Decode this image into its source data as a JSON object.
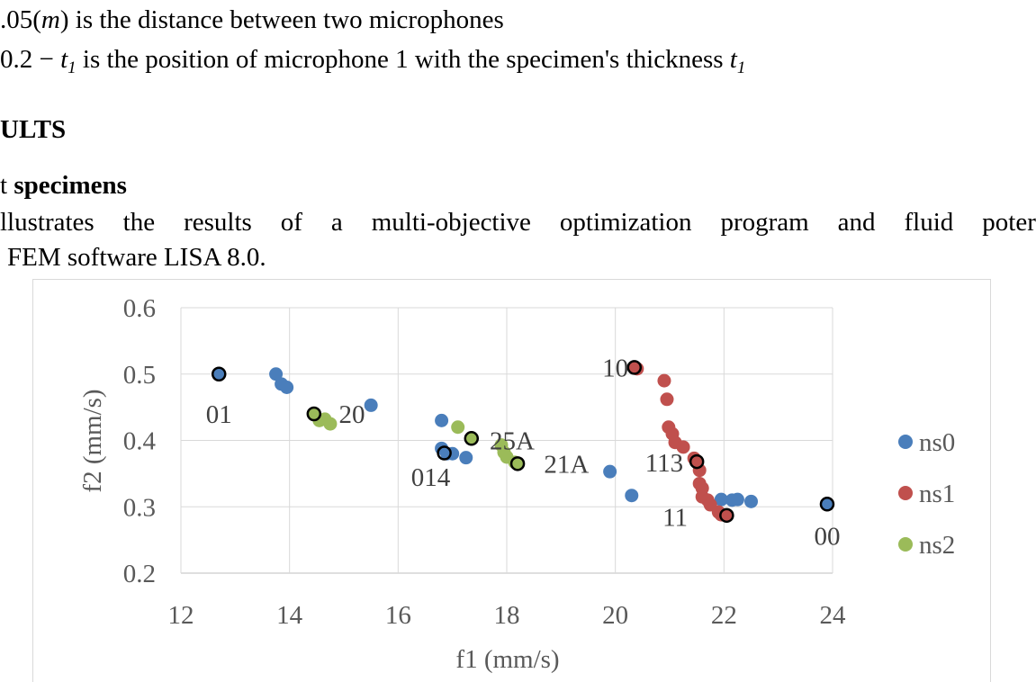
{
  "document": {
    "line1_prefix": ".05(",
    "line1_var": "m",
    "line1_suffix": ") is the distance between two microphones",
    "line2_prefix": "0.2 − ",
    "line2_var": "t",
    "line2_sub": "1",
    "line2_middle": " is the position of microphone 1 with the specimen's thickness ",
    "line2_var2": "t",
    "line2_sub2": "1",
    "heading_results": "ULTS",
    "subheading_prefix": "t ",
    "subheading_bold": "specimens",
    "paragraph_words": [
      "llustrates",
      "the",
      "results",
      "of",
      "a",
      "multi-objective",
      "optimization",
      "program",
      "and",
      "fluid",
      "poter"
    ],
    "paragraph_line2": "FEM software LISA 8.0."
  },
  "chart_data": {
    "type": "scatter",
    "xlabel": "f1 (mm/s)",
    "ylabel": "f2 (mm/s)",
    "xlim": [
      12,
      24
    ],
    "ylim": [
      0.2,
      0.6
    ],
    "xticks": [
      "12",
      "14",
      "16",
      "18",
      "20",
      "22",
      "24"
    ],
    "yticks": [
      "0.2",
      "0.3",
      "0.4",
      "0.5",
      "0.6"
    ],
    "grid": true,
    "legend_position": "right",
    "series": [
      {
        "name": "ns0",
        "color": "#4a7ebb",
        "points": [
          [
            12.7,
            0.5
          ],
          [
            13.75,
            0.5
          ],
          [
            13.85,
            0.485
          ],
          [
            13.95,
            0.48
          ],
          [
            15.5,
            0.453
          ],
          [
            14.45,
            0.44
          ],
          [
            16.8,
            0.43
          ],
          [
            16.8,
            0.388
          ],
          [
            16.9,
            0.38
          ],
          [
            17.0,
            0.38
          ],
          [
            17.25,
            0.374
          ],
          [
            19.9,
            0.353
          ],
          [
            20.3,
            0.317
          ],
          [
            21.95,
            0.311
          ],
          [
            22.15,
            0.31
          ],
          [
            22.25,
            0.311
          ],
          [
            22.5,
            0.308
          ],
          [
            23.9,
            0.304
          ]
        ]
      },
      {
        "name": "ns1",
        "color": "#c0504d",
        "points": [
          [
            20.35,
            0.51
          ],
          [
            20.4,
            0.508
          ],
          [
            20.9,
            0.49
          ],
          [
            20.95,
            0.462
          ],
          [
            20.98,
            0.42
          ],
          [
            21.05,
            0.41
          ],
          [
            21.1,
            0.397
          ],
          [
            21.25,
            0.39
          ],
          [
            21.45,
            0.373
          ],
          [
            21.5,
            0.368
          ],
          [
            21.55,
            0.355
          ],
          [
            21.55,
            0.335
          ],
          [
            21.6,
            0.328
          ],
          [
            21.6,
            0.315
          ],
          [
            21.7,
            0.31
          ],
          [
            21.75,
            0.303
          ],
          [
            21.9,
            0.292
          ],
          [
            21.95,
            0.288
          ],
          [
            22.05,
            0.287
          ]
        ]
      },
      {
        "name": "ns2",
        "color": "#9bbb59",
        "points": [
          [
            14.45,
            0.44
          ],
          [
            14.55,
            0.43
          ],
          [
            14.65,
            0.432
          ],
          [
            14.75,
            0.425
          ],
          [
            17.1,
            0.42
          ],
          [
            17.35,
            0.403
          ],
          [
            17.9,
            0.393
          ],
          [
            17.95,
            0.382
          ],
          [
            18.0,
            0.375
          ],
          [
            18.15,
            0.367
          ],
          [
            18.2,
            0.365
          ]
        ]
      }
    ],
    "highlighted": [
      [
        12.7,
        0.5
      ],
      [
        14.45,
        0.44
      ],
      [
        16.85,
        0.381
      ],
      [
        17.35,
        0.403
      ],
      [
        18.2,
        0.365
      ],
      [
        20.35,
        0.51
      ],
      [
        21.5,
        0.368
      ],
      [
        22.05,
        0.287
      ],
      [
        23.9,
        0.304
      ]
    ],
    "annotations": [
      {
        "text": "01",
        "x": 12.7,
        "y": 0.44
      },
      {
        "text": "20",
        "x": 15.15,
        "y": 0.44
      },
      {
        "text": "014",
        "x": 16.6,
        "y": 0.345
      },
      {
        "text": "25A",
        "x": 18.1,
        "y": 0.4
      },
      {
        "text": "21A",
        "x": 19.1,
        "y": 0.365
      },
      {
        "text": "10",
        "x": 20.0,
        "y": 0.51
      },
      {
        "text": "113",
        "x": 20.9,
        "y": 0.367
      },
      {
        "text": "11",
        "x": 21.1,
        "y": 0.285
      },
      {
        "text": "00",
        "x": 23.9,
        "y": 0.256
      }
    ]
  }
}
